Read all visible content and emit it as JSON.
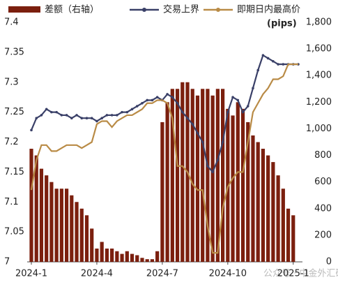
{
  "chart_data": {
    "type": "bar-line",
    "categories": [
      "2024-1",
      null,
      null,
      null,
      null,
      null,
      null,
      null,
      null,
      null,
      null,
      null,
      null,
      "2024-4",
      null,
      null,
      null,
      null,
      null,
      null,
      null,
      null,
      null,
      null,
      null,
      null,
      "2024-7",
      null,
      null,
      null,
      null,
      null,
      null,
      null,
      null,
      null,
      null,
      null,
      null,
      "2024-10",
      null,
      null,
      null,
      null,
      null,
      null,
      null,
      null,
      null,
      null,
      null,
      null,
      "2025-1",
      null
    ],
    "series": [
      {
        "name": "差额（右轴）",
        "color": "#7b1f0e",
        "kind": "bar",
        "axis": "y2",
        "values": [
          850,
          800,
          700,
          650,
          600,
          550,
          550,
          550,
          500,
          450,
          400,
          350,
          250,
          100,
          150,
          100,
          100,
          80,
          60,
          80,
          60,
          50,
          30,
          20,
          20,
          80,
          1050,
          1200,
          1300,
          1300,
          1350,
          1350,
          1300,
          1250,
          1300,
          1300,
          1250,
          1300,
          1300,
          1150,
          1100,
          1200,
          1150,
          1050,
          950,
          900,
          850,
          800,
          750,
          650,
          550,
          400,
          350,
          0
        ]
      },
      {
        "name": "交易上界",
        "color": "#3a4068",
        "kind": "line",
        "values": [
          7.22,
          7.24,
          7.245,
          7.255,
          7.25,
          7.25,
          7.245,
          7.245,
          7.24,
          7.245,
          7.24,
          7.24,
          7.24,
          7.235,
          7.24,
          7.245,
          7.245,
          7.245,
          7.25,
          7.25,
          7.255,
          7.26,
          7.265,
          7.27,
          7.27,
          7.275,
          7.27,
          7.28,
          7.275,
          7.265,
          7.25,
          7.24,
          7.23,
          7.215,
          7.2,
          7.16,
          7.15,
          7.17,
          7.2,
          7.25,
          7.275,
          7.27,
          7.25,
          7.26,
          7.29,
          7.32,
          7.345,
          7.34,
          7.335,
          7.33,
          7.33,
          7.33,
          7.33,
          7.33
        ]
      },
      {
        "name": "即期日内最高价",
        "color": "#b98b46",
        "kind": "line",
        "values": [
          7.12,
          7.17,
          7.195,
          7.195,
          7.185,
          7.185,
          7.19,
          7.195,
          7.195,
          7.195,
          7.19,
          7.195,
          7.2,
          7.23,
          7.235,
          7.235,
          7.225,
          7.235,
          7.24,
          7.245,
          7.245,
          7.25,
          7.255,
          7.265,
          7.265,
          7.27,
          7.27,
          7.265,
          7.24,
          7.16,
          7.16,
          7.15,
          7.13,
          7.12,
          7.12,
          7.06,
          7.015,
          7.015,
          7.09,
          7.125,
          7.14,
          7.15,
          7.15,
          7.2,
          7.25,
          7.265,
          7.28,
          7.29,
          7.305,
          7.305,
          7.31,
          7.33,
          7.33,
          7.33
        ]
      }
    ],
    "ylim": [
      7,
      7.4
    ],
    "yticks": [
      7,
      7.05,
      7.1,
      7.15,
      7.2,
      7.25,
      7.3,
      7.35,
      7.4
    ],
    "y2lim": [
      0,
      1800
    ],
    "y2ticks": [
      0,
      200,
      400,
      600,
      800,
      {
        "value": 1000,
        "label": "1,000"
      },
      {
        "value": 1200,
        "label": "1,200"
      },
      {
        "value": 1400,
        "label": "1,400"
      },
      {
        "value": 1600,
        "label": "1,600"
      },
      {
        "value": 1800,
        "label": "1,800"
      }
    ],
    "y2_unit": "(pips)",
    "watermark": "公众号 · 中金外汇研究",
    "legend": "top"
  }
}
